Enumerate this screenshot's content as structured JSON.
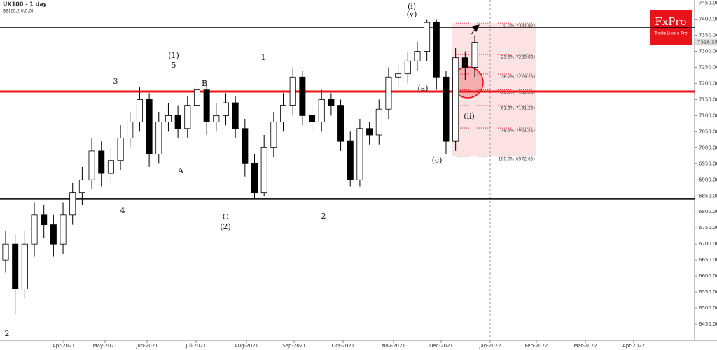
{
  "chart_data": {
    "type": "candlestick",
    "title": "UK100 - 1 day",
    "subtitle": "BB(20,2.0,0,0)",
    "ylim": [
      6400,
      7460
    ],
    "yticks": [
      {
        "value": 6450,
        "label": "6450.00"
      },
      {
        "value": 6500,
        "label": "6500.00"
      },
      {
        "value": 6550,
        "label": "6550.00"
      },
      {
        "value": 6600,
        "label": "6600.00"
      },
      {
        "value": 6650,
        "label": "6650.00"
      },
      {
        "value": 6700,
        "label": "6700.00"
      },
      {
        "value": 6750,
        "label": "6750.00"
      },
      {
        "value": 6800,
        "label": "6800.00"
      },
      {
        "value": 6850,
        "label": "6850.00"
      },
      {
        "value": 6900,
        "label": "6900.00"
      },
      {
        "value": 6950,
        "label": "6950.00"
      },
      {
        "value": 7000,
        "label": "7000.00"
      },
      {
        "value": 7050,
        "label": "7050.00"
      },
      {
        "value": 7100,
        "label": "7100.00"
      },
      {
        "value": 7150,
        "label": "7150.00"
      },
      {
        "value": 7200,
        "label": "7200.00"
      },
      {
        "value": 7250,
        "label": "7250.00"
      },
      {
        "value": 7300,
        "label": "7300.00"
      },
      {
        "value": 7350,
        "label": "7350.00"
      },
      {
        "value": 7400,
        "label": "7400.00"
      },
      {
        "value": 7450,
        "label": "7450.00"
      }
    ],
    "xticks": [
      "Apr-2021",
      "May-2021",
      "Jun-2021",
      "Jul-2021",
      "Aug-2021",
      "Sep-2021",
      "Oct-2021",
      "Nov-2021",
      "Dec-2021",
      "Jan-2022",
      "Feb-2022",
      "Mar-2022",
      "Apr-2022"
    ],
    "open": [
      6650,
      6700,
      6560,
      6700,
      6790,
      6760,
      6700,
      6790,
      6860,
      6900,
      6990,
      6920,
      6960,
      7030,
      7080,
      7150,
      6980,
      7080,
      7100,
      7060,
      7130,
      7180,
      7080,
      7100,
      7140,
      7060,
      6950,
      6860,
      7000,
      7080,
      7130,
      7220,
      7100,
      7080,
      7150,
      7130,
      7020,
      6900,
      7060,
      7040,
      7120,
      7220,
      7230,
      7270,
      7300,
      7390,
      7220,
      7020,
      7280,
      7250
    ],
    "high": [
      6740,
      6730,
      6740,
      6830,
      6820,
      6790,
      6830,
      6890,
      6940,
      7030,
      7020,
      7000,
      7070,
      7110,
      7190,
      7170,
      7110,
      7140,
      7130,
      7160,
      7210,
      7200,
      7140,
      7170,
      7160,
      7090,
      6980,
      7040,
      7110,
      7170,
      7250,
      7240,
      7130,
      7180,
      7170,
      7150,
      7050,
      7090,
      7080,
      7150,
      7250,
      7260,
      7300,
      7330,
      7400,
      7400,
      7240,
      7310,
      7300,
      7350
    ],
    "low": [
      6610,
      6480,
      6530,
      6660,
      6720,
      6660,
      6670,
      6760,
      6820,
      6870,
      6880,
      6890,
      6930,
      7000,
      7050,
      6940,
      6950,
      7050,
      7030,
      7030,
      7100,
      7040,
      7050,
      7070,
      7030,
      6910,
      6840,
      6850,
      6970,
      7050,
      7100,
      7070,
      7050,
      7050,
      7100,
      6990,
      6880,
      6880,
      7010,
      7010,
      7090,
      7190,
      7200,
      7240,
      7270,
      7180,
      6980,
      6990,
      7210,
      7220
    ],
    "close": [
      6700,
      6560,
      6700,
      6790,
      6760,
      6700,
      6790,
      6860,
      6900,
      6990,
      6920,
      6960,
      7030,
      7080,
      7150,
      6980,
      7080,
      7100,
      7060,
      7130,
      7180,
      7080,
      7100,
      7140,
      7060,
      6950,
      6860,
      7000,
      7080,
      7130,
      7220,
      7100,
      7080,
      7150,
      7130,
      7020,
      6900,
      7060,
      7040,
      7120,
      7220,
      7230,
      7270,
      7300,
      7390,
      7220,
      7020,
      7280,
      7250,
      7328
    ],
    "last_price": 7328.35,
    "hlines": [
      {
        "value": 7375,
        "color": "#000000"
      },
      {
        "value": 7175,
        "color": "#e8141a"
      },
      {
        "value": 6840,
        "color": "#000000"
      }
    ],
    "fib_levels": [
      {
        "value": 7387.87,
        "label": "0.0%(7387.87)"
      },
      {
        "value": 7289.88,
        "label": "23.6%(7289.88)"
      },
      {
        "value": 7229.26,
        "label": "38.2%(7229.26)"
      },
      {
        "value": 7180.26,
        "label": "50.0%(7180.26)"
      },
      {
        "value": 7131.26,
        "label": "61.8%(7131.26)"
      },
      {
        "value": 7061.51,
        "label": "78.6%(7061.51)"
      },
      {
        "value": 6972.65,
        "label": "100.0%(6972.65)"
      }
    ],
    "wave_labels": [
      "(1)",
      "5",
      "3",
      "4",
      "B",
      "A",
      "C",
      "(2)",
      "1",
      "2",
      "2",
      "(i)",
      "(v)",
      "(ii)",
      "(c)",
      "(a)"
    ],
    "logo": {
      "name": "FxPro",
      "tagline": "Trade Like a Pro"
    }
  }
}
